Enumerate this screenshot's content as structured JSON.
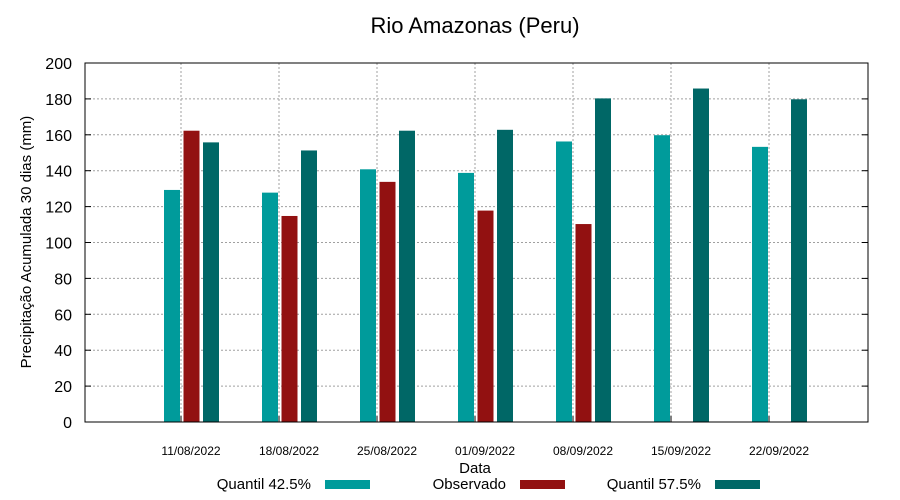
{
  "chart_data": {
    "type": "bar",
    "title": "Rio Amazonas (Peru)",
    "xlabel": "Data",
    "ylabel": "Precipitação Acumulada 30 dias (mm)",
    "ylim": [
      0,
      200
    ],
    "yticks": [
      "0",
      "20",
      "40",
      "60",
      "80",
      "100",
      "120",
      "140",
      "160",
      "180",
      "200"
    ],
    "grid": true,
    "legend_position": "bottom",
    "categories": [
      "11/08/2022",
      "18/08/2022",
      "25/08/2022",
      "01/09/2022",
      "08/09/2022",
      "15/09/2022",
      "22/09/2022"
    ],
    "series": [
      {
        "name": "Quantil 42.5%",
        "color": "#009b9b",
        "values": [
          129,
          127.5,
          140.5,
          138.5,
          156,
          159.5,
          153
        ]
      },
      {
        "name": "Observado",
        "color": "#921111",
        "values": [
          162,
          114.5,
          133.5,
          117.5,
          110,
          null,
          null
        ]
      },
      {
        "name": "Quantil 57.5%",
        "color": "#006766",
        "values": [
          155.5,
          151,
          162,
          162.5,
          180,
          185.5,
          179.5
        ]
      }
    ]
  }
}
